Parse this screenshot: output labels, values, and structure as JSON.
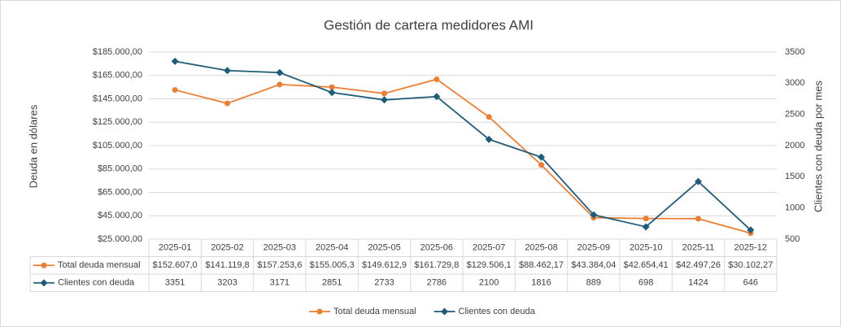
{
  "chart_data": {
    "type": "line",
    "title": "Gestión de cartera medidores AMI",
    "y_label": "Deuda en dólares",
    "y2_label": "Clientes con deuda por mes",
    "categories": [
      "2025-01",
      "2025-02",
      "2025-03",
      "2025-04",
      "2025-05",
      "2025-06",
      "2025-07",
      "2025-08",
      "2025-09",
      "2025-10",
      "2025-11",
      "2025-12"
    ],
    "series": [
      {
        "name": "Total deuda mensual",
        "color": "#ED7D31",
        "marker": "circle",
        "values": [
          152607.0,
          141119.8,
          157253.6,
          155005.3,
          149612.9,
          161729.8,
          129506.1,
          88462.17,
          43384.04,
          42654.41,
          42497.26,
          30102.27
        ],
        "value_labels": [
          "$152.607,0",
          "$141.119,8",
          "$157.253,6",
          "$155.005,3",
          "$149.612,9",
          "$161.729,8",
          "$129.506,1",
          "$88.462,17",
          "$43.384,04",
          "$42.654,41",
          "$42.497,26",
          "$30.102,27"
        ]
      },
      {
        "name": "Clientes con deuda",
        "color": "#1F5C7A",
        "marker": "diamond",
        "axis": "y2",
        "values": [
          3351,
          3203,
          3171,
          2851,
          2733,
          2786,
          2100,
          1816,
          889,
          698,
          1424,
          646
        ]
      }
    ],
    "ylim": [
      25000,
      185000
    ],
    "yticks": [
      {
        "value": 25000,
        "label": "$25.000,00"
      },
      {
        "value": 45000,
        "label": "$45.000,00"
      },
      {
        "value": 65000,
        "label": "$65.000,00"
      },
      {
        "value": 85000,
        "label": "$85.000,00"
      },
      {
        "value": 105000,
        "label": "$105.000,00"
      },
      {
        "value": 125000,
        "label": "$125.000,00"
      },
      {
        "value": 145000,
        "label": "$145.000,00"
      },
      {
        "value": 165000,
        "label": "$165.000,00"
      },
      {
        "value": 185000,
        "label": "$185.000,00"
      }
    ],
    "y2lim": [
      500,
      3500
    ],
    "y2ticks": [
      500,
      1000,
      1500,
      2000,
      2500,
      3000,
      3500
    ],
    "grid": true,
    "legend": "bottom",
    "data_table": true
  }
}
